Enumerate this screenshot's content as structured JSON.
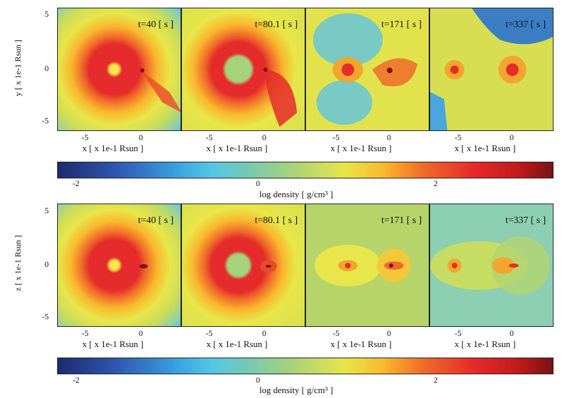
{
  "rows": [
    {
      "y_label": "y [ x 1e-1 Rsun ]",
      "y_ticks": [
        "5",
        "0",
        "-5"
      ],
      "panels": [
        {
          "time": "t=40 [ s ]",
          "x_ticks": [
            "-5",
            "0"
          ],
          "x_label": "x [ x 1e-1 Rsun ]"
        },
        {
          "time": "t=80.1 [ s ]",
          "x_ticks": [
            "-5",
            "0"
          ],
          "x_label": "x [ x 1e-1 Rsun ]"
        },
        {
          "time": "t=171 [ s ]",
          "x_ticks": [
            "-5",
            "0"
          ],
          "x_label": "x [ x 1e-1 Rsun ]"
        },
        {
          "time": "t=337 [ s ]",
          "x_ticks": [
            "-5",
            "0"
          ],
          "x_label": "x [ x 1e-1 Rsun ]"
        }
      ],
      "colorbar": {
        "ticks": [
          "-2",
          "0",
          "2"
        ],
        "label": "log density [ g/cm³ ]"
      }
    },
    {
      "y_label": "z [ x 1e-1 Rsun ]",
      "y_ticks": [
        "5",
        "0",
        "-5"
      ],
      "panels": [
        {
          "time": "t=40 [ s ]",
          "x_ticks": [
            "-5",
            "0"
          ],
          "x_label": "x [ x 1e-1 Rsun ]"
        },
        {
          "time": "t=80.1 [ s ]",
          "x_ticks": [
            "-5",
            "0"
          ],
          "x_label": "x [ x 1e-1 Rsun ]"
        },
        {
          "time": "t=171 [ s ]",
          "x_ticks": [
            "-5",
            "0"
          ],
          "x_label": "x [ x 1e-1 Rsun ]"
        },
        {
          "time": "t=337 [ s ]",
          "x_ticks": [
            "-5",
            "0"
          ],
          "x_label": "x [ x 1e-1 Rsun ]"
        }
      ],
      "colorbar": {
        "ticks": [
          "-2",
          "0",
          "2"
        ],
        "label": "log density [ g/cm³ ]"
      }
    }
  ],
  "colors": {
    "low": "#1c2a6e",
    "mid": "#74c9b4",
    "high": "#7a1313",
    "red": "#e52b2b",
    "yellow": "#e8e64a",
    "cyan": "#52c7e6"
  }
}
